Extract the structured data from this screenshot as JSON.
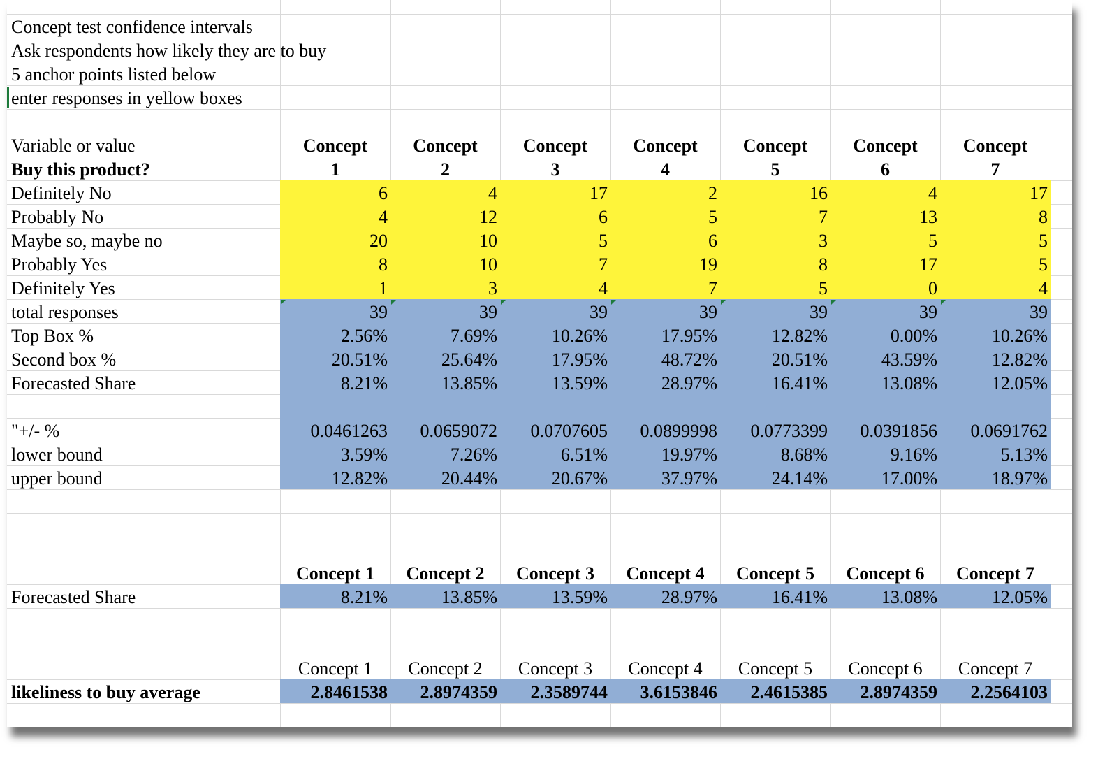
{
  "intro": [
    "Concept test confidence intervals",
    "Ask respondents how likely they are to buy",
    "5 anchor points listed below",
    "enter responses in yellow boxes"
  ],
  "header": {
    "variable_label": "Variable or value",
    "question_label": "Buy this product?",
    "concept_word": "Concept",
    "concept_numbers": [
      "1",
      "2",
      "3",
      "4",
      "5",
      "6",
      "7"
    ]
  },
  "responses": [
    {
      "label": "Definitely No",
      "values": [
        "6",
        "4",
        "17",
        "2",
        "16",
        "4",
        "17"
      ]
    },
    {
      "label": "Probably No",
      "values": [
        "4",
        "12",
        "6",
        "5",
        "7",
        "13",
        "8"
      ]
    },
    {
      "label": "Maybe so, maybe no",
      "values": [
        "20",
        "10",
        "5",
        "6",
        "3",
        "5",
        "5"
      ]
    },
    {
      "label": "Probably Yes",
      "values": [
        "8",
        "10",
        "7",
        "19",
        "8",
        "17",
        "5"
      ]
    },
    {
      "label": "Definitely Yes",
      "values": [
        "1",
        "3",
        "4",
        "7",
        "5",
        "0",
        "4"
      ]
    }
  ],
  "stats": [
    {
      "label": "total responses",
      "values": [
        "39",
        "39",
        "39",
        "39",
        "39",
        "39",
        "39"
      ]
    },
    {
      "label": "Top Box %",
      "values": [
        "2.56%",
        "7.69%",
        "10.26%",
        "17.95%",
        "12.82%",
        "0.00%",
        "10.26%"
      ]
    },
    {
      "label": "Second box %",
      "values": [
        "20.51%",
        "25.64%",
        "17.95%",
        "48.72%",
        "20.51%",
        "43.59%",
        "12.82%"
      ]
    },
    {
      "label": "Forecasted Share",
      "values": [
        "8.21%",
        "13.85%",
        "13.59%",
        "28.97%",
        "16.41%",
        "13.08%",
        "12.05%"
      ]
    }
  ],
  "bounds": [
    {
      "label": "\"+/- %",
      "values": [
        "0.0461263",
        "0.0659072",
        "0.0707605",
        "0.0899998",
        "0.0773399",
        "0.0391856",
        "0.0691762"
      ]
    },
    {
      "label": "lower bound",
      "values": [
        "3.59%",
        "7.26%",
        "6.51%",
        "19.97%",
        "8.68%",
        "9.16%",
        "5.13%"
      ]
    },
    {
      "label": "upper bound",
      "values": [
        "12.82%",
        "20.44%",
        "20.67%",
        "37.97%",
        "24.14%",
        "17.00%",
        "18.97%"
      ]
    }
  ],
  "share_summary": {
    "headers": [
      "Concept 1",
      "Concept 2",
      "Concept 3",
      "Concept 4",
      "Concept 5",
      "Concept 6",
      "Concept 7"
    ],
    "label": "Forecasted Share",
    "values": [
      "8.21%",
      "13.85%",
      "13.59%",
      "28.97%",
      "16.41%",
      "13.08%",
      "12.05%"
    ]
  },
  "likeliness": {
    "headers": [
      "Concept 1",
      "Concept 2",
      "Concept 3",
      "Concept 4",
      "Concept 5",
      "Concept 6",
      "Concept 7"
    ],
    "label": "likeliness to buy average",
    "values": [
      "2.8461538",
      "2.8974359",
      "2.3589744",
      "3.6153846",
      "2.4615385",
      "2.8974359",
      "2.2564103"
    ]
  },
  "colors": {
    "input_fill": "#fef43a",
    "calc_fill": "#91aed5",
    "gridline": "#d9d9d9",
    "marker": "#1d7a3a"
  }
}
